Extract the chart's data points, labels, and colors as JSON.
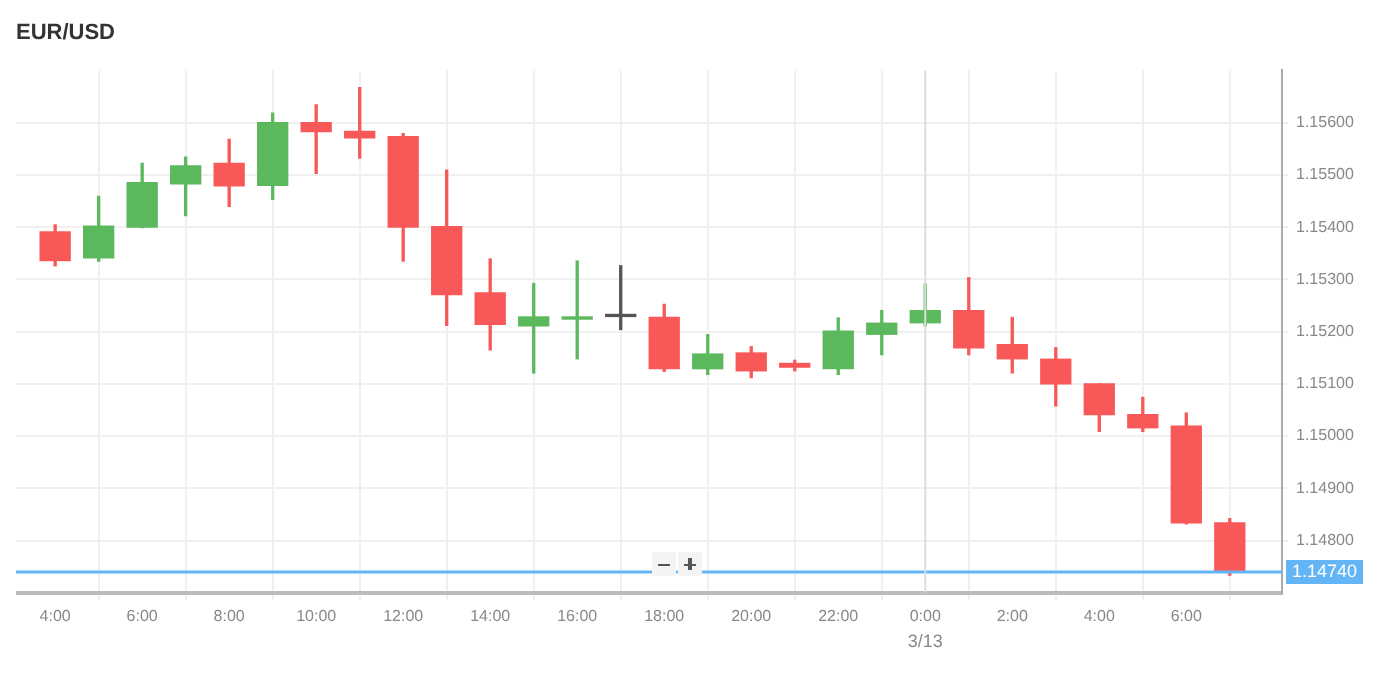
{
  "chart_data": {
    "type": "candlestick",
    "title": "EUR/USD",
    "x": [
      "--03-12T04:00",
      "--03-12T05:00",
      "--03-12T06:00",
      "--03-12T07:00",
      "--03-12T08:00",
      "--03-12T09:00",
      "--03-12T10:00",
      "--03-12T11:00",
      "--03-12T12:00",
      "--03-12T13:00",
      "--03-12T14:00",
      "--03-12T15:00",
      "--03-12T16:00",
      "--03-12T17:00",
      "--03-12T18:00",
      "--03-12T19:00",
      "--03-12T20:00",
      "--03-12T21:00",
      "--03-12T22:00",
      "--03-12T23:00",
      "--03-13T00:00",
      "--03-13T01:00",
      "--03-13T02:00",
      "--03-13T03:00",
      "--03-13T04:00",
      "--03-13T05:00",
      "--03-13T06:00",
      "--03-13T07:00"
    ],
    "ohlc": [
      [
        1.15391,
        1.15404,
        1.15326,
        1.15336
      ],
      [
        1.15341,
        1.15459,
        1.15335,
        1.15402
      ],
      [
        1.154,
        1.15522,
        1.15399,
        1.15485
      ],
      [
        1.15483,
        1.15534,
        1.15422,
        1.15517
      ],
      [
        1.15522,
        1.15568,
        1.1544,
        1.15479
      ],
      [
        1.1548,
        1.15618,
        1.15453,
        1.156
      ],
      [
        1.156,
        1.15634,
        1.15503,
        1.15583
      ],
      [
        1.15583,
        1.15667,
        1.15532,
        1.15571
      ],
      [
        1.15573,
        1.15579,
        1.15335,
        1.154
      ],
      [
        1.15401,
        1.15509,
        1.15212,
        1.15271
      ],
      [
        1.15274,
        1.15339,
        1.15165,
        1.15214
      ],
      [
        1.15211,
        1.15292,
        1.15121,
        1.15228
      ],
      [
        1.15224,
        1.15335,
        1.15148,
        1.15228
      ],
      [
        1.15229,
        1.15326,
        1.15204,
        1.15229
      ],
      [
        1.15227,
        1.15252,
        1.15124,
        1.15129
      ],
      [
        1.15129,
        1.15194,
        1.15118,
        1.15157
      ],
      [
        1.15159,
        1.15171,
        1.15112,
        1.15125
      ],
      [
        1.15139,
        1.15145,
        1.15125,
        1.15132
      ],
      [
        1.15129,
        1.15226,
        1.15118,
        1.15201
      ],
      [
        1.15195,
        1.1524,
        1.15156,
        1.15216
      ],
      [
        1.15217,
        1.15291,
        1.15211,
        1.1524
      ],
      [
        1.1524,
        1.15303,
        1.15156,
        1.15169
      ],
      [
        1.15175,
        1.15227,
        1.15121,
        1.15148
      ],
      [
        1.15147,
        1.15169,
        1.15058,
        1.151
      ],
      [
        1.151,
        1.151,
        1.15009,
        1.15041
      ],
      [
        1.15041,
        1.15074,
        1.15009,
        1.15016
      ],
      [
        1.15019,
        1.15044,
        1.14832,
        1.14834
      ],
      [
        1.14834,
        1.14842,
        1.14734,
        1.1474
      ]
    ],
    "colors": [
      "#f95858",
      "#5cb85c",
      "#5cb85c",
      "#5cb85c",
      "#f95858",
      "#5cb85c",
      "#f95858",
      "#f95858",
      "#f95858",
      "#f95858",
      "#f95858",
      "#5cb85c",
      "#5cb85c",
      "#555555",
      "#f95858",
      "#5cb85c",
      "#f95858",
      "#f95858",
      "#5cb85c",
      "#5cb85c",
      "#5cb85c",
      "#f95858",
      "#f95858",
      "#f95858",
      "#f95858",
      "#f95858",
      "#f95858",
      "#f95858"
    ],
    "xlim": [
      "--03-12T03:06",
      "--03-13T08:12"
    ],
    "xticks": [
      {
        "value": "--03-12T04:00",
        "label": "4:00"
      },
      {
        "value": "--03-12T06:00",
        "label": "6:00"
      },
      {
        "value": "--03-12T08:00",
        "label": "8:00"
      },
      {
        "value": "--03-12T10:00",
        "label": "10:00"
      },
      {
        "value": "--03-12T12:00",
        "label": "12:00"
      },
      {
        "value": "--03-12T14:00",
        "label": "14:00"
      },
      {
        "value": "--03-12T16:00",
        "label": "16:00"
      },
      {
        "value": "--03-12T18:00",
        "label": "18:00"
      },
      {
        "value": "--03-12T20:00",
        "label": "20:00"
      },
      {
        "value": "--03-12T22:00",
        "label": "22:00"
      },
      {
        "value": "--03-13T00:00",
        "label": "0:00"
      },
      {
        "value": "--03-13T02:00",
        "label": "2:00"
      },
      {
        "value": "--03-13T04:00",
        "label": "4:00"
      },
      {
        "value": "--03-13T06:00",
        "label": "6:00"
      }
    ],
    "ylim": [
      1.147,
      1.157
    ],
    "yticks": [
      {
        "value": 1.148,
        "label": "1.14800"
      },
      {
        "value": 1.149,
        "label": "1.14900"
      },
      {
        "value": 1.15,
        "label": "1.15000"
      },
      {
        "value": 1.151,
        "label": "1.15100"
      },
      {
        "value": 1.152,
        "label": "1.15200"
      },
      {
        "value": 1.153,
        "label": "1.15300"
      },
      {
        "value": 1.154,
        "label": "1.15400"
      },
      {
        "value": 1.155,
        "label": "1.15500"
      },
      {
        "value": 1.156,
        "label": "1.15600"
      }
    ],
    "ref_lines": [
      {
        "axis": "y",
        "value": 1.1474,
        "label": "1.14740",
        "color": "#64b5f6"
      },
      {
        "axis": "x",
        "value": "--03-13T00:00",
        "label": "3/13",
        "color": "#dddddd"
      }
    ],
    "grid": true,
    "legend": false
  }
}
